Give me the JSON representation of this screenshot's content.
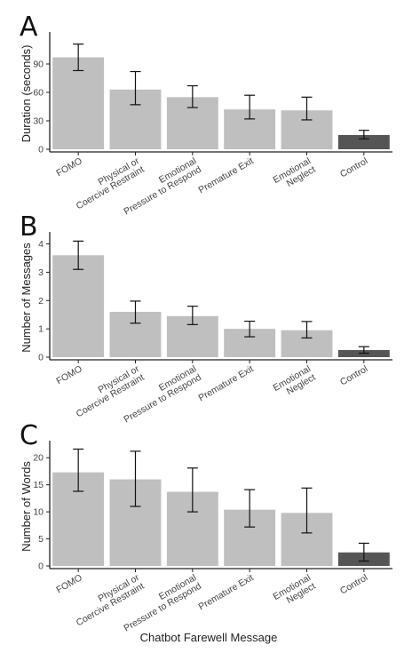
{
  "figure": {
    "xlabel": "Chatbot Farewell Message",
    "colors": {
      "bar": "#bfbfbf",
      "control_bar": "#555555",
      "axis": "#222222",
      "errorbar": "#111111"
    }
  },
  "chart_data": [
    {
      "type": "bar",
      "panel_label": "A",
      "categories": [
        [
          "FOMO"
        ],
        [
          "Physical or",
          "Coercive Restraint"
        ],
        [
          "Emotional",
          "Pressure to Respond"
        ],
        [
          "Premature Exit"
        ],
        [
          "Emotional",
          "Neglect"
        ],
        [
          "Control"
        ]
      ],
      "values": [
        97,
        63,
        55,
        42,
        41,
        15
      ],
      "error_low": [
        83,
        47,
        44,
        32,
        31,
        11
      ],
      "error_high": [
        111,
        82,
        67,
        57,
        55,
        20
      ],
      "ylabel": "Duration (seconds)",
      "ylim": [
        0,
        120
      ],
      "yticks": [
        0,
        30,
        60,
        90
      ],
      "xlabel": "",
      "grid": false
    },
    {
      "type": "bar",
      "panel_label": "B",
      "categories": [
        [
          "FOMO"
        ],
        [
          "Physical or",
          "Coercive Restraint"
        ],
        [
          "Emotional",
          "Pressure to Respond"
        ],
        [
          "Premature Exit"
        ],
        [
          "Emotional",
          "Neglect"
        ],
        [
          "Control"
        ]
      ],
      "values": [
        3.6,
        1.6,
        1.45,
        1.0,
        0.95,
        0.25
      ],
      "error_low": [
        3.1,
        1.2,
        1.15,
        0.72,
        0.68,
        0.14
      ],
      "error_high": [
        4.1,
        1.98,
        1.8,
        1.27,
        1.26,
        0.37
      ],
      "ylabel": "Number of Messages",
      "ylim": [
        0,
        4.3
      ],
      "yticks": [
        0,
        1,
        2,
        3,
        4
      ],
      "xlabel": "",
      "grid": false
    },
    {
      "type": "bar",
      "panel_label": "C",
      "categories": [
        [
          "FOMO"
        ],
        [
          "Physical or",
          "Coercive Restraint"
        ],
        [
          "Emotional",
          "Pressure to Respond"
        ],
        [
          "Premature Exit"
        ],
        [
          "Emotional",
          "Neglect"
        ],
        [
          "Control"
        ]
      ],
      "values": [
        17.3,
        16.0,
        13.7,
        10.4,
        9.8,
        2.5
      ],
      "error_low": [
        13.8,
        11.0,
        10.0,
        7.2,
        6.1,
        0.9
      ],
      "error_high": [
        21.6,
        21.2,
        18.1,
        14.1,
        14.4,
        4.2
      ],
      "ylabel": "Number of Words",
      "ylim": [
        0,
        22.5
      ],
      "yticks": [
        0,
        5,
        10,
        15,
        20
      ],
      "xlabel": "Chatbot Farewell Message",
      "grid": false
    }
  ]
}
